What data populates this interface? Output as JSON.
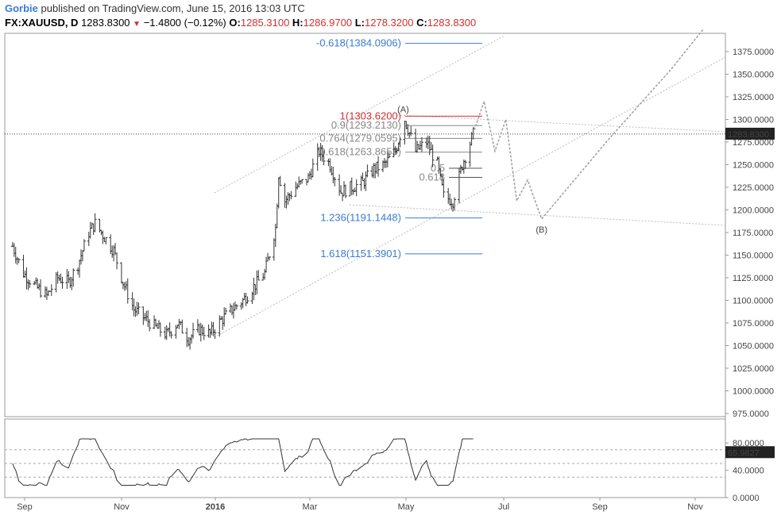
{
  "header": {
    "author": "Gorbie",
    "published_text": "published on TradingView.com, June 15, 2016 13:03 UTC",
    "symbol": "FX:XAUUSD, D",
    "last": "1283.8300",
    "change": "−1.4800 (−0.12%)",
    "o_label": "O:",
    "o_value": "1285.3100",
    "h_label": "H:",
    "h_value": "1286.9700",
    "l_label": "L:",
    "l_value": "1278.3200",
    "c_label": "C:",
    "c_value": "1283.8300"
  },
  "colors": {
    "price_bars": "#333333",
    "projection": "#9e9e9e",
    "channel": "#bdbdbd",
    "fib_red": "#d32f2f",
    "fib_gray": "#888888",
    "fib_blue": "#3a7bd5",
    "last_price_bg": "#222222"
  },
  "chart_data": {
    "type": "ohlc",
    "symbol": "FX:XAUUSD",
    "interval": "D",
    "price_axis": {
      "min": 975,
      "max": 1375,
      "ticks": [
        "1375.0000",
        "1350.0000",
        "1325.0000",
        "1300.0000",
        "1275.0000",
        "1250.0000",
        "1225.0000",
        "1200.0000",
        "1175.0000",
        "1150.0000",
        "1125.0000",
        "1100.0000",
        "1075.0000",
        "1050.0000",
        "1025.0000",
        "1000.0000",
        "975.0000"
      ],
      "last_price_label": "1283.8300",
      "last_price": 1283.83
    },
    "time_axis": {
      "labels": [
        "Sep",
        "Nov",
        "2016",
        "Mar",
        "May",
        "Jul",
        "Sep",
        "Nov"
      ],
      "bold": [
        "2016"
      ]
    },
    "price_path": [
      [
        "2015-08-24",
        1160
      ],
      [
        "2015-08-31",
        1130
      ],
      [
        "2015-09-08",
        1115
      ],
      [
        "2015-09-15",
        1105
      ],
      [
        "2015-09-22",
        1125
      ],
      [
        "2015-09-29",
        1120
      ],
      [
        "2015-10-05",
        1140
      ],
      [
        "2015-10-12",
        1175
      ],
      [
        "2015-10-16",
        1185
      ],
      [
        "2015-10-22",
        1170
      ],
      [
        "2015-10-28",
        1155
      ],
      [
        "2015-11-03",
        1120
      ],
      [
        "2015-11-10",
        1090
      ],
      [
        "2015-11-17",
        1080
      ],
      [
        "2015-11-24",
        1070
      ],
      [
        "2015-12-01",
        1062
      ],
      [
        "2015-12-08",
        1075
      ],
      [
        "2015-12-15",
        1058
      ],
      [
        "2015-12-22",
        1068
      ],
      [
        "2015-12-29",
        1063
      ],
      [
        "2016-01-05",
        1078
      ],
      [
        "2016-01-12",
        1090
      ],
      [
        "2016-01-19",
        1100
      ],
      [
        "2016-01-26",
        1115
      ],
      [
        "2016-02-02",
        1130
      ],
      [
        "2016-02-09",
        1180
      ],
      [
        "2016-02-11",
        1240
      ],
      [
        "2016-02-15",
        1210
      ],
      [
        "2016-02-22",
        1225
      ],
      [
        "2016-03-01",
        1235
      ],
      [
        "2016-03-08",
        1265
      ],
      [
        "2016-03-15",
        1250
      ],
      [
        "2016-03-22",
        1220
      ],
      [
        "2016-03-29",
        1225
      ],
      [
        "2016-04-05",
        1230
      ],
      [
        "2016-04-12",
        1245
      ],
      [
        "2016-04-19",
        1250
      ],
      [
        "2016-04-26",
        1265
      ],
      [
        "2016-05-02",
        1300
      ],
      [
        "2016-05-09",
        1265
      ],
      [
        "2016-05-16",
        1275
      ],
      [
        "2016-05-23",
        1250
      ],
      [
        "2016-05-27",
        1215
      ],
      [
        "2016-06-02",
        1210
      ],
      [
        "2016-06-08",
        1250
      ],
      [
        "2016-06-15",
        1284
      ]
    ],
    "projection_path": [
      [
        "2016-06-15",
        1284
      ],
      [
        "2016-06-22",
        1320
      ],
      [
        "2016-06-29",
        1265
      ],
      [
        "2016-07-06",
        1300
      ],
      [
        "2016-07-13",
        1210
      ],
      [
        "2016-07-20",
        1233
      ],
      [
        "2016-07-29",
        1190
      ],
      [
        "2016-09-10",
        1278
      ],
      [
        "2016-10-20",
        1355
      ],
      [
        "2016-11-10",
        1400
      ]
    ],
    "fib_levels": [
      {
        "label": "-0.618(1384.0906)",
        "price": 1384.0906,
        "color": "#3a7bd5"
      },
      {
        "label": "1(1303.6200)",
        "price": 1303.62,
        "color": "#d32f2f"
      },
      {
        "label": "0.9(1293.2130)",
        "price": 1293.213,
        "color": "#888888"
      },
      {
        "label": "0.764(1279.0595)",
        "price": 1279.0595,
        "color": "#888888"
      },
      {
        "label": "0.618(1263.8653)",
        "price": 1263.8653,
        "color": "#888888"
      },
      {
        "label": "1.236(1191.1448)",
        "price": 1191.1448,
        "color": "#3a7bd5"
      },
      {
        "label": "1.618(1151.3901)",
        "price": 1151.3901,
        "color": "#3a7bd5"
      }
    ],
    "minor_fib_labels": [
      {
        "label": "0.5",
        "price": 1246
      },
      {
        "label": "0.618",
        "price": 1236
      }
    ],
    "wave_labels": [
      {
        "label": "(A)",
        "date": "2016-05-01",
        "price": 1308
      },
      {
        "label": "(B)",
        "date": "2016-07-29",
        "price": 1175
      }
    ],
    "oscillator": {
      "ticks": [
        "80.0000",
        "40.0000",
        "0.0000"
      ],
      "min": 0,
      "max": 100,
      "last_label": "65.9827",
      "last": 65.9827,
      "levels": [
        70,
        50,
        30
      ]
    }
  }
}
